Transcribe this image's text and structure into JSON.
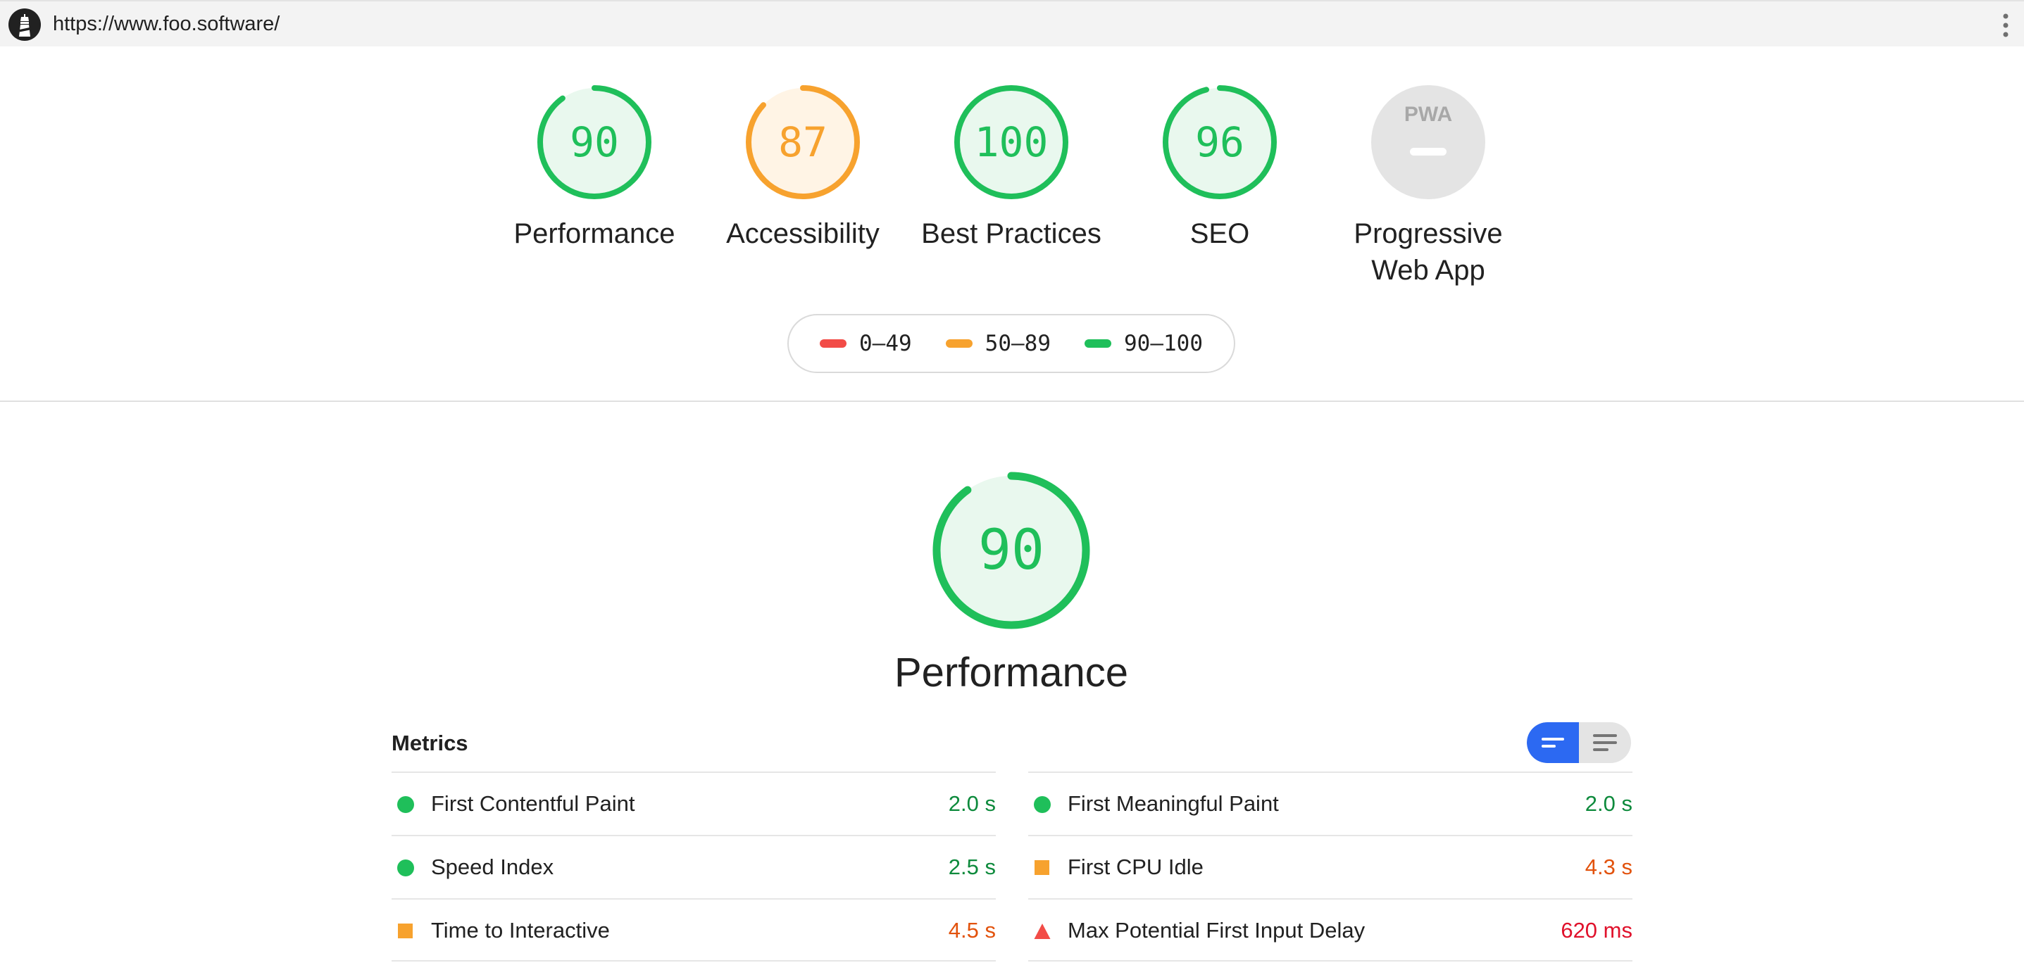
{
  "topbar": {
    "url": "https://www.foo.software/"
  },
  "colors": {
    "pass": "#1fbf5a",
    "pass_fill": "#e9f8ee",
    "average": "#f7a22e",
    "average_fill": "#fff4e5",
    "fail": "#f24c47",
    "pwa_fill": "#e4e4e4",
    "accent": "#2c69f2"
  },
  "summary": [
    {
      "label": "Performance",
      "score": "90",
      "rating": "pass"
    },
    {
      "label": "Accessibility",
      "score": "87",
      "rating": "average"
    },
    {
      "label": "Best Practices",
      "score": "100",
      "rating": "pass"
    },
    {
      "label": "SEO",
      "score": "96",
      "rating": "pass"
    },
    {
      "label": "Progressive Web App",
      "badge": "PWA",
      "rating": "none"
    }
  ],
  "legend": [
    {
      "range": "0–49",
      "color": "#f24c47"
    },
    {
      "range": "50–89",
      "color": "#f7a22e"
    },
    {
      "range": "90–100",
      "color": "#1fbf5a"
    }
  ],
  "performance": {
    "score": "90",
    "title": "Performance",
    "metrics_title": "Metrics",
    "metrics_left": [
      {
        "name": "First Contentful Paint",
        "value": "2.0 s",
        "rating": "pass"
      },
      {
        "name": "Speed Index",
        "value": "2.5 s",
        "rating": "pass"
      },
      {
        "name": "Time to Interactive",
        "value": "4.5 s",
        "rating": "average"
      }
    ],
    "metrics_right": [
      {
        "name": "First Meaningful Paint",
        "value": "2.0 s",
        "rating": "pass"
      },
      {
        "name": "First CPU Idle",
        "value": "4.3 s",
        "rating": "average"
      },
      {
        "name": "Max Potential First Input Delay",
        "value": "620 ms",
        "rating": "fail"
      }
    ]
  }
}
